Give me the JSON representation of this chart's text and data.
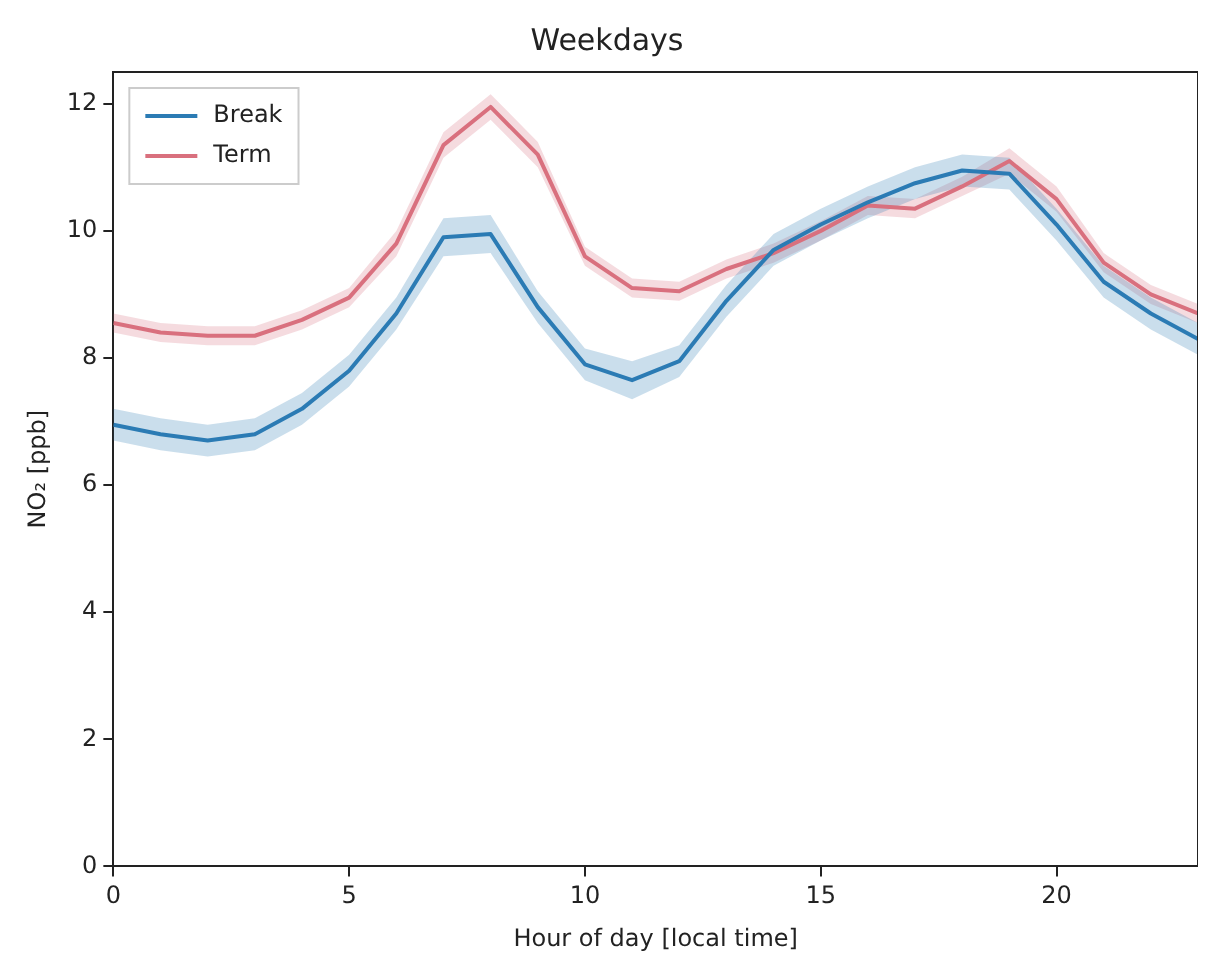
{
  "chart_data": {
    "type": "line",
    "title": "Weekdays",
    "xlabel": "Hour of day [local time]",
    "ylabel": "NO₂ [ppb]",
    "x": [
      0,
      1,
      2,
      3,
      4,
      5,
      6,
      7,
      8,
      9,
      10,
      11,
      12,
      13,
      14,
      15,
      16,
      17,
      18,
      19,
      20,
      21,
      22,
      23
    ],
    "series": [
      {
        "name": "Break",
        "color": "#2b7bb4",
        "values": [
          6.95,
          6.8,
          6.7,
          6.8,
          7.2,
          7.8,
          8.7,
          9.9,
          9.95,
          8.8,
          7.9,
          7.65,
          7.95,
          8.9,
          9.7,
          10.1,
          10.45,
          10.75,
          10.95,
          10.9,
          10.1,
          9.2,
          8.7,
          8.3
        ],
        "lower": [
          6.7,
          6.55,
          6.45,
          6.55,
          6.95,
          7.55,
          8.45,
          9.6,
          9.65,
          8.55,
          7.65,
          7.35,
          7.7,
          8.65,
          9.45,
          9.85,
          10.2,
          10.5,
          10.7,
          10.65,
          9.85,
          8.95,
          8.45,
          8.05
        ],
        "upper": [
          7.2,
          7.05,
          6.95,
          7.05,
          7.45,
          8.05,
          8.95,
          10.2,
          10.25,
          9.05,
          8.15,
          7.95,
          8.2,
          9.15,
          9.95,
          10.35,
          10.7,
          11.0,
          11.2,
          11.15,
          10.35,
          9.45,
          8.95,
          8.55
        ]
      },
      {
        "name": "Term",
        "color": "#d9707e",
        "values": [
          8.55,
          8.4,
          8.35,
          8.35,
          8.6,
          8.95,
          9.8,
          11.35,
          11.95,
          11.2,
          9.6,
          9.1,
          9.05,
          9.4,
          9.65,
          10.0,
          10.4,
          10.35,
          10.7,
          11.1,
          10.5,
          9.5,
          9.0,
          8.7
        ],
        "lower": [
          8.4,
          8.25,
          8.2,
          8.2,
          8.45,
          8.8,
          9.6,
          11.15,
          11.75,
          11.0,
          9.45,
          8.95,
          8.9,
          9.25,
          9.5,
          9.85,
          10.25,
          10.2,
          10.55,
          10.9,
          10.3,
          9.35,
          8.85,
          8.55
        ],
        "upper": [
          8.7,
          8.55,
          8.5,
          8.5,
          8.75,
          9.1,
          10.0,
          11.55,
          12.15,
          11.4,
          9.75,
          9.25,
          9.2,
          9.55,
          9.8,
          10.15,
          10.55,
          10.5,
          10.85,
          11.3,
          10.7,
          9.65,
          9.15,
          8.85
        ]
      }
    ],
    "xlim": [
      0,
      23
    ],
    "xticks": [
      0,
      5,
      10,
      15,
      20
    ],
    "ylim": [
      0,
      12.5
    ],
    "yticks": [
      0,
      2,
      4,
      6,
      8,
      10,
      12
    ],
    "grid": false,
    "legend": "top left",
    "marker": "none",
    "line_style": "solid"
  }
}
